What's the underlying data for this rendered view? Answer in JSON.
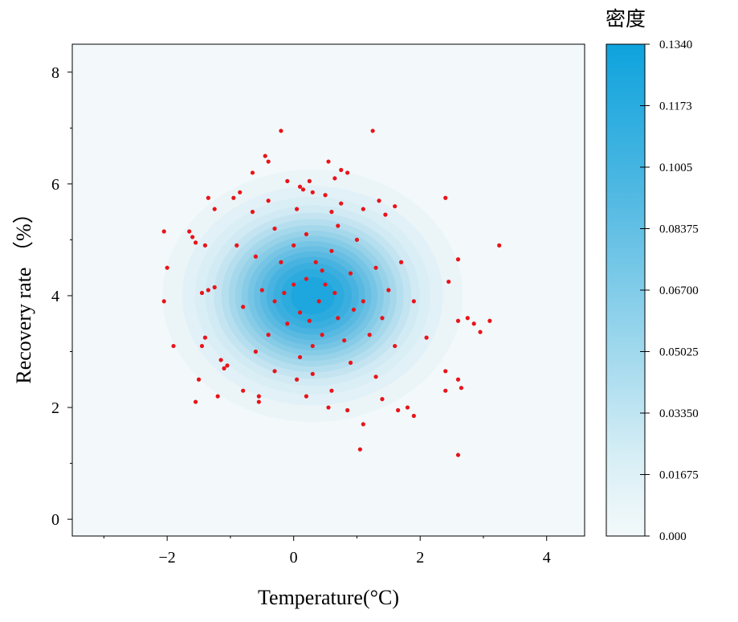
{
  "chart_data": {
    "type": "scatter",
    "subtype": "scatter-over-density-contour",
    "xlabel": "Temperature(°C)",
    "ylabel": "Recovery rate （%）",
    "xlim": [
      -3.5,
      4.6
    ],
    "ylim": [
      -0.3,
      8.5
    ],
    "x_ticks": [
      -2,
      0,
      2,
      4
    ],
    "x_tick_labels": [
      "−2",
      "0",
      "2",
      "4"
    ],
    "y_ticks": [
      0,
      2,
      4,
      6,
      8
    ],
    "y_tick_labels": [
      "0",
      "2",
      "4",
      "6",
      "8"
    ],
    "grid": false,
    "point_color": "#e8141a",
    "density": {
      "center": [
        0.3,
        4.0
      ],
      "sd": [
        0.95,
        0.95
      ],
      "colormap": [
        "#f3f9fa",
        "#cfe9f3",
        "#8fcfe8",
        "#4cb4e0",
        "#0ea3dd"
      ]
    },
    "colorbar": {
      "title": "密度",
      "position": "right",
      "ticks": [
        "0.1340",
        "0.1173",
        "0.1005",
        "0.08375",
        "0.06700",
        "0.05025",
        "0.03350",
        "0.01675",
        "0.000"
      ]
    },
    "points": [
      [
        -0.2,
        6.95
      ],
      [
        1.25,
        6.95
      ],
      [
        -0.45,
        6.5
      ],
      [
        -0.4,
        6.4
      ],
      [
        0.55,
        6.4
      ],
      [
        0.75,
        6.25
      ],
      [
        0.85,
        6.2
      ],
      [
        -0.65,
        6.2
      ],
      [
        0.65,
        6.1
      ],
      [
        -0.1,
        6.05
      ],
      [
        0.25,
        6.05
      ],
      [
        0.1,
        5.95
      ],
      [
        0.15,
        5.9
      ],
      [
        -0.85,
        5.85
      ],
      [
        0.3,
        5.85
      ],
      [
        -1.35,
        5.75
      ],
      [
        0.5,
        5.8
      ],
      [
        -0.95,
        5.75
      ],
      [
        2.4,
        5.75
      ],
      [
        -0.4,
        5.7
      ],
      [
        1.35,
        5.7
      ],
      [
        0.75,
        5.65
      ],
      [
        1.6,
        5.6
      ],
      [
        -1.25,
        5.55
      ],
      [
        1.1,
        5.55
      ],
      [
        0.05,
        5.55
      ],
      [
        -0.65,
        5.5
      ],
      [
        0.6,
        5.5
      ],
      [
        1.45,
        5.45
      ],
      [
        -2.05,
        5.15
      ],
      [
        -1.65,
        5.15
      ],
      [
        -1.6,
        5.05
      ],
      [
        -1.55,
        4.95
      ],
      [
        -1.4,
        4.9
      ],
      [
        3.25,
        4.9
      ],
      [
        -2.0,
        4.5
      ],
      [
        2.6,
        4.65
      ],
      [
        -1.25,
        4.15
      ],
      [
        -1.35,
        4.1
      ],
      [
        -1.45,
        4.05
      ],
      [
        -2.05,
        3.9
      ],
      [
        2.45,
        4.25
      ],
      [
        -1.4,
        3.25
      ],
      [
        -1.45,
        3.1
      ],
      [
        -1.9,
        3.1
      ],
      [
        2.1,
        3.25
      ],
      [
        2.75,
        3.6
      ],
      [
        2.6,
        3.55
      ],
      [
        3.1,
        3.55
      ],
      [
        2.85,
        3.5
      ],
      [
        2.95,
        3.35
      ],
      [
        -1.15,
        2.85
      ],
      [
        -1.1,
        2.7
      ],
      [
        -1.5,
        2.5
      ],
      [
        2.4,
        2.65
      ],
      [
        2.6,
        2.5
      ],
      [
        2.65,
        2.35
      ],
      [
        -1.2,
        2.2
      ],
      [
        2.4,
        2.3
      ],
      [
        -1.55,
        2.1
      ],
      [
        -0.55,
        2.2
      ],
      [
        -0.55,
        2.1
      ],
      [
        1.8,
        2.0
      ],
      [
        1.65,
        1.95
      ],
      [
        1.9,
        1.85
      ],
      [
        0.55,
        2.0
      ],
      [
        0.85,
        1.95
      ],
      [
        1.1,
        1.7
      ],
      [
        1.05,
        1.25
      ],
      [
        2.6,
        1.15
      ],
      [
        1.4,
        2.15
      ],
      [
        0.2,
        2.2
      ],
      [
        -0.8,
        2.3
      ],
      [
        0.6,
        2.3
      ],
      [
        -1.05,
        2.75
      ],
      [
        0.05,
        2.5
      ],
      [
        0.3,
        2.6
      ],
      [
        -0.3,
        2.65
      ],
      [
        1.3,
        2.55
      ],
      [
        -0.2,
        4.6
      ],
      [
        0.2,
        4.3
      ],
      [
        0.4,
        3.9
      ],
      [
        0.5,
        4.2
      ],
      [
        0.1,
        3.7
      ],
      [
        -0.1,
        3.5
      ],
      [
        0.7,
        3.6
      ],
      [
        0.9,
        4.4
      ],
      [
        1.1,
        3.9
      ],
      [
        -0.5,
        4.1
      ],
      [
        -0.3,
        3.9
      ],
      [
        0.35,
        4.6
      ],
      [
        0.6,
        4.8
      ],
      [
        0.0,
        4.9
      ],
      [
        -0.6,
        4.7
      ],
      [
        1.3,
        4.5
      ],
      [
        1.5,
        4.1
      ],
      [
        0.8,
        3.2
      ],
      [
        0.3,
        3.1
      ],
      [
        -0.4,
        3.3
      ],
      [
        1.2,
        3.3
      ],
      [
        0.0,
        4.2
      ],
      [
        0.45,
        4.45
      ],
      [
        0.65,
        4.05
      ],
      [
        0.25,
        3.55
      ],
      [
        -0.15,
        4.05
      ],
      [
        0.95,
        3.75
      ],
      [
        -0.8,
        3.8
      ],
      [
        1.7,
        4.6
      ],
      [
        1.9,
        3.9
      ],
      [
        -0.9,
        4.9
      ],
      [
        0.2,
        5.1
      ],
      [
        1.0,
        5.0
      ],
      [
        -0.3,
        5.2
      ],
      [
        0.7,
        5.25
      ],
      [
        1.4,
        3.6
      ],
      [
        1.6,
        3.1
      ],
      [
        -0.6,
        3.0
      ],
      [
        0.1,
        2.9
      ],
      [
        0.9,
        2.8
      ],
      [
        0.45,
        3.3
      ]
    ]
  }
}
